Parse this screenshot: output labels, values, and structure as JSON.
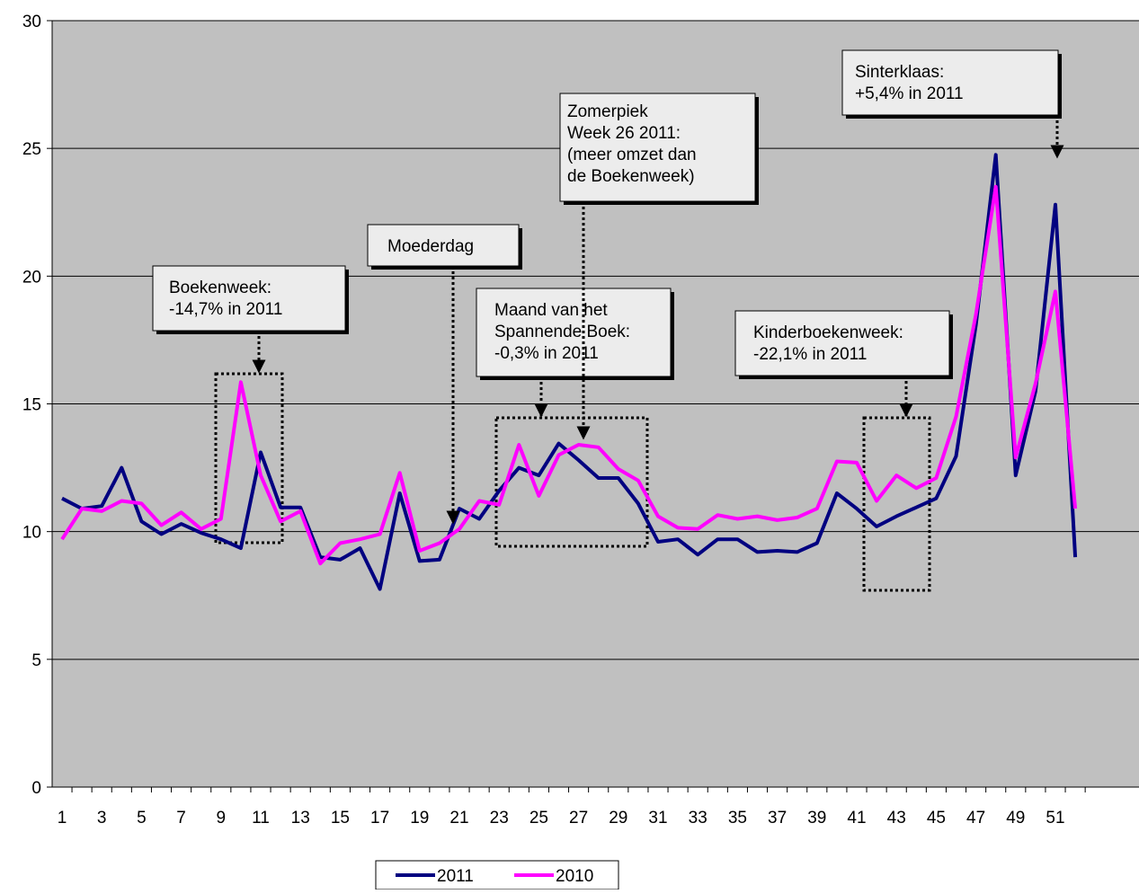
{
  "chart_data": {
    "type": "line",
    "title": "",
    "xlabel": "",
    "ylabel": "",
    "ylim": [
      0,
      30
    ],
    "yticks": [
      0,
      5,
      10,
      15,
      20,
      25,
      30
    ],
    "x": [
      1,
      2,
      3,
      4,
      5,
      6,
      7,
      8,
      9,
      10,
      11,
      12,
      13,
      14,
      15,
      16,
      17,
      18,
      19,
      20,
      21,
      22,
      23,
      24,
      25,
      26,
      27,
      28,
      29,
      30,
      31,
      32,
      33,
      34,
      35,
      36,
      37,
      38,
      39,
      40,
      41,
      42,
      43,
      44,
      45,
      46,
      47,
      48,
      49,
      50,
      51,
      52
    ],
    "xtick_labels": [
      "1",
      "3",
      "5",
      "7",
      "9",
      "11",
      "13",
      "15",
      "17",
      "19",
      "21",
      "23",
      "25",
      "27",
      "29",
      "31",
      "33",
      "35",
      "37",
      "39",
      "41",
      "43",
      "45",
      "47",
      "49",
      "51"
    ],
    "grid": "horizontal",
    "background": "#c0c0c0",
    "legend_position": "bottom",
    "series": [
      {
        "name": "2011",
        "color": "#000080",
        "values": [
          11.3,
          10.9,
          11.0,
          12.5,
          10.4,
          9.9,
          10.3,
          9.95,
          9.7,
          9.35,
          13.1,
          10.95,
          10.95,
          9.0,
          8.9,
          9.35,
          7.75,
          11.5,
          8.85,
          8.9,
          10.9,
          10.5,
          11.6,
          12.5,
          12.2,
          13.45,
          12.8,
          12.1,
          12.1,
          11.1,
          9.6,
          9.7,
          9.1,
          9.7,
          9.7,
          9.2,
          9.25,
          9.2,
          9.55,
          11.5,
          10.9,
          10.2,
          10.6,
          10.95,
          11.3,
          12.95,
          18.1,
          24.75,
          12.2,
          15.5,
          22.8,
          9.0
        ]
      },
      {
        "name": "2010",
        "color": "#ff00ff",
        "values": [
          9.7,
          10.9,
          10.8,
          11.2,
          11.1,
          10.25,
          10.75,
          10.1,
          10.5,
          15.85,
          12.2,
          10.4,
          10.8,
          8.75,
          9.55,
          9.7,
          9.9,
          12.3,
          9.25,
          9.55,
          10.1,
          11.2,
          11.05,
          13.4,
          11.4,
          13.0,
          13.4,
          13.3,
          12.45,
          12.0,
          10.6,
          10.15,
          10.1,
          10.65,
          10.5,
          10.6,
          10.45,
          10.55,
          10.9,
          12.75,
          12.7,
          11.2,
          12.2,
          11.7,
          12.1,
          14.5,
          18.5,
          23.5,
          12.9,
          15.8,
          19.4,
          10.9
        ]
      }
    ],
    "annotations": [
      {
        "id": "boekenweek",
        "lines": [
          "Boekenweek:",
          "-14,7% in 2011"
        ]
      },
      {
        "id": "moederdag",
        "lines": [
          "Moederdag"
        ]
      },
      {
        "id": "zomerpiek",
        "lines": [
          "Zomerpiek",
          "Week 26 2011:",
          "(meer omzet dan",
          "de Boekenweek)"
        ]
      },
      {
        "id": "spannende-boek",
        "lines": [
          "Maand van het",
          "Spannende Boek:",
          "-0,3% in 2011"
        ]
      },
      {
        "id": "kinderboekenweek",
        "lines": [
          "Kinderboekenweek:",
          "-22,1% in 2011"
        ]
      },
      {
        "id": "sinterklaas",
        "lines": [
          "Sinterklaas:",
          "+5,4% in 2011"
        ]
      }
    ]
  }
}
